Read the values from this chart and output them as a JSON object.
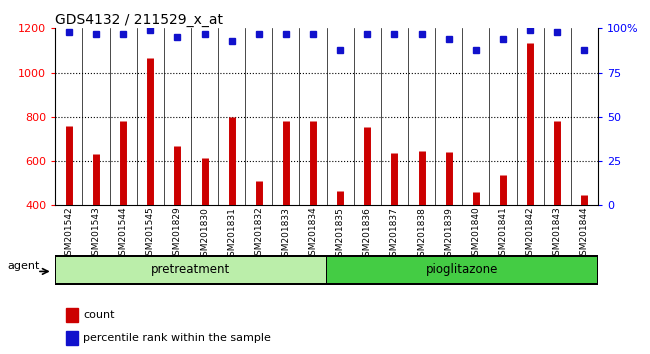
{
  "title": "GDS4132 / 211529_x_at",
  "categories": [
    "GSM201542",
    "GSM201543",
    "GSM201544",
    "GSM201545",
    "GSM201829",
    "GSM201830",
    "GSM201831",
    "GSM201832",
    "GSM201833",
    "GSM201834",
    "GSM201835",
    "GSM201836",
    "GSM201837",
    "GSM201838",
    "GSM201839",
    "GSM201840",
    "GSM201841",
    "GSM201842",
    "GSM201843",
    "GSM201844"
  ],
  "bar_values": [
    760,
    630,
    780,
    1065,
    668,
    615,
    800,
    510,
    780,
    780,
    463,
    755,
    635,
    645,
    640,
    462,
    535,
    1135,
    780,
    445
  ],
  "dot_values": [
    98,
    97,
    97,
    99,
    95,
    97,
    93,
    97,
    97,
    97,
    88,
    97,
    97,
    97,
    94,
    88,
    94,
    99,
    98,
    88
  ],
  "bar_color": "#cc0000",
  "dot_color": "#1111cc",
  "ylim_left": [
    400,
    1200
  ],
  "ylim_right": [
    0,
    100
  ],
  "yticks_left": [
    400,
    600,
    800,
    1000,
    1200
  ],
  "yticks_right": [
    0,
    25,
    50,
    75,
    100
  ],
  "ytick_labels_right": [
    "0",
    "25",
    "50",
    "75",
    "100%"
  ],
  "group1_label": "pretreatment",
  "group2_label": "pioglitazone",
  "group1_count": 10,
  "group2_count": 10,
  "agent_label": "agent",
  "legend_bar_label": "count",
  "legend_dot_label": "percentile rank within the sample",
  "group1_color": "#bbeeaa",
  "group2_color": "#44cc44",
  "bar_area_color": "#dddddd",
  "background_color": "#ffffff"
}
